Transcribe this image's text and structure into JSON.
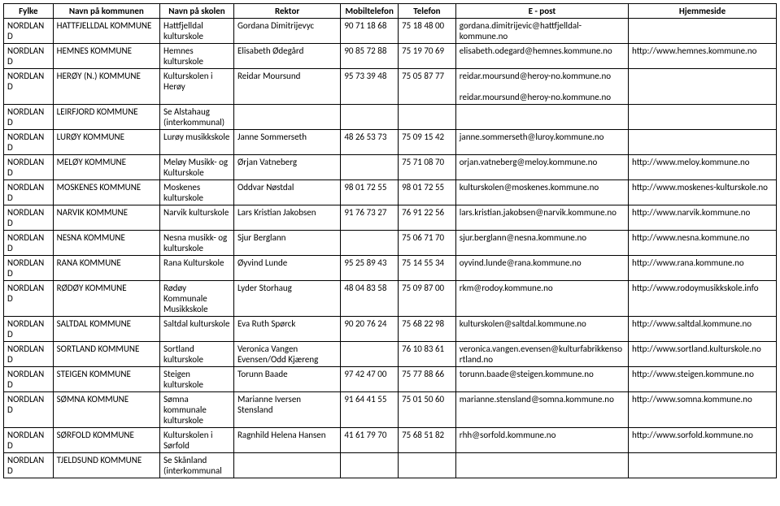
{
  "columns": [
    {
      "key": "fylke",
      "label": "Fylke"
    },
    {
      "key": "kommune",
      "label": "Navn på kommunen"
    },
    {
      "key": "skole",
      "label": "Navn på skolen"
    },
    {
      "key": "rektor",
      "label": "Rektor"
    },
    {
      "key": "mobil",
      "label": "Mobiltelefon"
    },
    {
      "key": "telefon",
      "label": "Telefon"
    },
    {
      "key": "epost",
      "label": "E - post"
    },
    {
      "key": "hjemmeside",
      "label": "Hjemmeside"
    }
  ],
  "rows": [
    {
      "fylke": "NORDLAND",
      "kommune": "HATTFJELLDAL KOMMUNE",
      "skole": "Hattfjelldal kulturskole",
      "rektor": "Gordana Dimitrijevyc",
      "mobil": "90 71 18 68",
      "telefon": "75 18 48 00",
      "epost": "gordana.dimitrijevic@hattfjelldal-kommune.no",
      "hjemmeside": ""
    },
    {
      "fylke": "NORDLAND",
      "kommune": "HEMNES KOMMUNE",
      "skole": "Hemnes kulturskole",
      "rektor": "Elisabeth Ødegård",
      "mobil": "90 85 72 88",
      "telefon": "75 19 70 69",
      "epost": "elisabeth.odegard@hemnes.kommune.no",
      "hjemmeside": "http://www.hemnes.kommune.no"
    },
    {
      "fylke": "NORDLAND",
      "kommune": "HERØY (N.) KOMMUNE",
      "skole": "Kulturskolen i Herøy",
      "rektor": "Reidar Moursund",
      "mobil": "95 73 39 48",
      "telefon": "75 05 87 77",
      "epost": "reidar.moursund@heroy-no.kommune.no\n\nreidar.moursund@heroy-no.kommune.no",
      "hjemmeside": ""
    },
    {
      "fylke": "NORDLAND",
      "kommune": "LEIRFJORD KOMMUNE",
      "skole": "Se Alstahaug (interkommunal)",
      "rektor": "",
      "mobil": "",
      "telefon": "",
      "epost": "",
      "hjemmeside": ""
    },
    {
      "fylke": "NORDLAND",
      "kommune": "LURØY KOMMUNE",
      "skole": "Lurøy musikkskole",
      "rektor": "Janne Sommerseth",
      "mobil": "48 26 53 73",
      "telefon": "75 09 15 42",
      "epost": "janne.sommerseth@luroy.kommune.no",
      "hjemmeside": ""
    },
    {
      "fylke": "NORDLAND",
      "kommune": "MELØY KOMMUNE",
      "skole": "Meløy Musikk- og Kulturskole",
      "rektor": "Ørjan Vatneberg",
      "mobil": "",
      "telefon": "75 71 08 70",
      "epost": "orjan.vatneberg@meloy.kommune.no",
      "hjemmeside": "http://www.meloy.kommune.no"
    },
    {
      "fylke": "NORDLAND",
      "kommune": "MOSKENES KOMMUNE",
      "skole": "Moskenes kulturskole",
      "rektor": "Oddvar Nøstdal",
      "mobil": "98 01 72 55",
      "telefon": "98 01 72 55",
      "epost": "kulturskolen@moskenes.kommune.no",
      "hjemmeside": "http://www.moskenes-kulturskole.no"
    },
    {
      "fylke": "NORDLAND",
      "kommune": "NARVIK KOMMUNE",
      "skole": "Narvik kulturskole",
      "rektor": "Lars Kristian Jakobsen",
      "mobil": "91 76 73 27",
      "telefon": "76 91 22 56",
      "epost": "lars.kristian.jakobsen@narvik.kommune.no",
      "hjemmeside": "http://www.narvik.kommune.no"
    },
    {
      "fylke": "NORDLAND",
      "kommune": "NESNA KOMMUNE",
      "skole": "Nesna musikk- og kulturskole",
      "rektor": "Sjur Berglann",
      "mobil": "",
      "telefon": "75 06 71 70",
      "epost": "sjur.berglann@nesna.kommune.no",
      "hjemmeside": "http://www.nesna.kommune.no"
    },
    {
      "fylke": "NORDLAND",
      "kommune": "RANA KOMMUNE",
      "skole": "Rana Kulturskole",
      "rektor": "Øyvind Lunde",
      "mobil": "95 25 89 43",
      "telefon": "75 14 55 34",
      "epost": "oyvind.lunde@rana.kommune.no",
      "hjemmeside": "http://www.rana.kommune.no"
    },
    {
      "fylke": "NORDLAND",
      "kommune": "RØDØY KOMMUNE",
      "skole": "Rødøy Kommunale Musikkskole",
      "rektor": "Lyder Storhaug",
      "mobil": "48 04 83 58",
      "telefon": "75 09 87 00",
      "epost": "rkm@rodoy.kommune.no",
      "hjemmeside": "http://www.rodoymusikkskole.info"
    },
    {
      "fylke": "NORDLAND",
      "kommune": "SALTDAL KOMMUNE",
      "skole": "Saltdal kulturskole",
      "rektor": "Eva Ruth Spørck",
      "mobil": "90 20 76 24",
      "telefon": "75 68 22 98",
      "epost": "kulturskolen@saltdal.kommune.no",
      "hjemmeside": "http://www.saltdal.kommune.no"
    },
    {
      "fylke": "NORDLAND",
      "kommune": "SORTLAND KOMMUNE",
      "skole": "Sortland kulturskole",
      "rektor": "Veronica Vangen Evensen/Odd Kjæreng",
      "mobil": "",
      "telefon": "76 10 83 61",
      "epost": "veronica.vangen.evensen@kulturfabrikkensortland.no",
      "hjemmeside": "http://www.sortland.kulturskole.no"
    },
    {
      "fylke": "NORDLAND",
      "kommune": "STEIGEN KOMMUNE",
      "skole": "Steigen kulturskole",
      "rektor": "Torunn Baade",
      "mobil": "97 42 47 00",
      "telefon": "75 77 88 66",
      "epost": "torunn.baade@steigen.kommune.no",
      "hjemmeside": "http://www.steigen.kommune.no"
    },
    {
      "fylke": "NORDLAND",
      "kommune": "SØMNA KOMMUNE",
      "skole": "Sømna kommunale kulturskole",
      "rektor": "Marianne Iversen Stensland",
      "mobil": "91 64 41 55",
      "telefon": "75 01 50 60",
      "epost": "marianne.stensland@somna.kommune.no",
      "hjemmeside": "http://www.somna.kommune.no"
    },
    {
      "fylke": "NORDLAND",
      "kommune": "SØRFOLD KOMMUNE",
      "skole": "Kulturskolen i Sørfold",
      "rektor": "Ragnhild Helena Hansen",
      "mobil": "41 61 79 70",
      "telefon": "75 68 51 82",
      "epost": "rhh@sorfold.kommune.no",
      "hjemmeside": "http://www.sorfold.kommune.no"
    },
    {
      "fylke": "NORDLAND",
      "kommune": "TJELDSUND KOMMUNE",
      "skole": "Se Skånland (interkommunal",
      "rektor": "",
      "mobil": "",
      "telefon": "",
      "epost": "",
      "hjemmeside": ""
    }
  ]
}
